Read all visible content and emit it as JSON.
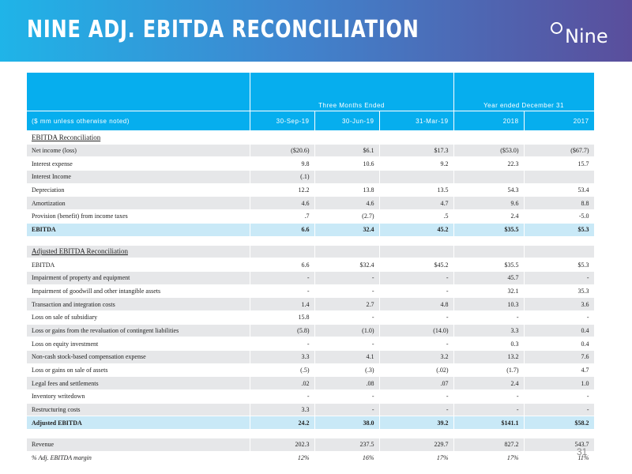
{
  "slide": {
    "title": "NINE ADJ. EBITDA RECONCILIATION",
    "logo_text": "Nine",
    "page_number": "31",
    "colors": {
      "banner_start": "#1fb4e8",
      "banner_end": "#5a4e9c",
      "header_fill": "#06aeee",
      "total_fill": "#c9e9f7",
      "shade_fill": "#e6e7e9"
    }
  },
  "table": {
    "group_three_months": "Three Months Ended",
    "group_year_ended": "Year ended December 31",
    "unit_note": "($ mm unless otherwise noted)",
    "columns": [
      "30-Sep-19",
      "30-Jun-19",
      "31-Mar-19",
      "2018",
      "2017"
    ],
    "section1_title": "EBITDA Reconciliation",
    "section1_rows": [
      {
        "label": "Net income (loss)",
        "values": [
          "($20.6)",
          "$6.1",
          "$17.3",
          "($53.0)",
          "($67.7)"
        ]
      },
      {
        "label": "Interest expense",
        "values": [
          "9.8",
          "10.6",
          "9.2",
          "22.3",
          "15.7"
        ]
      },
      {
        "label": "Interest Income",
        "values": [
          "(.1)",
          "",
          "",
          "",
          ""
        ]
      },
      {
        "label": "Depreciation",
        "values": [
          "12.2",
          "13.8",
          "13.5",
          "54.3",
          "53.4"
        ]
      },
      {
        "label": "Amortization",
        "values": [
          "4.6",
          "4.6",
          "4.7",
          "9.6",
          "8.8"
        ]
      },
      {
        "label": "Provision (benefit) from income taxes",
        "values": [
          ".7",
          "(2.7)",
          ".5",
          "2.4",
          "-5.0"
        ]
      }
    ],
    "ebitda_total": {
      "label": "EBITDA",
      "values": [
        "6.6",
        "32.4",
        "45.2",
        "$35.5",
        "$5.3"
      ]
    },
    "section2_title": "Adjusted EBITDA Reconciliation",
    "section2_rows": [
      {
        "label": "EBITDA",
        "values": [
          "6.6",
          "$32.4",
          "$45.2",
          "$35.5",
          "$5.3"
        ]
      },
      {
        "label": "Impairment of property and equipment",
        "values": [
          "-",
          "-",
          "-",
          "45.7",
          "-"
        ]
      },
      {
        "label": "Impairment of goodwill and other intangible assets",
        "values": [
          "-",
          "-",
          "-",
          "32.1",
          "35.3"
        ]
      },
      {
        "label": "Transaction and integration costs",
        "values": [
          "1.4",
          "2.7",
          "4.8",
          "10.3",
          "3.6"
        ]
      },
      {
        "label": "Loss on sale of subsidiary",
        "values": [
          "15.8",
          "-",
          "-",
          "-",
          "-"
        ]
      },
      {
        "label": "Loss or gains from the revaluation of contingent liabilities",
        "values": [
          "(5.8)",
          "(1.0)",
          "(14.0)",
          "3.3",
          "0.4"
        ]
      },
      {
        "label": "Loss on equity investment",
        "values": [
          "-",
          "-",
          "-",
          "0.3",
          "0.4"
        ]
      },
      {
        "label": "Non-cash stock-based compensation expense",
        "values": [
          "3.3",
          "4.1",
          "3.2",
          "13.2",
          "7.6"
        ]
      },
      {
        "label": "Loss or gains on sale of assets",
        "values": [
          "(.5)",
          "(.3)",
          "(.02)",
          "(1.7)",
          "4.7"
        ]
      },
      {
        "label": "Legal fees and settlements",
        "values": [
          ".02",
          ".08",
          ".07",
          "2.4",
          "1.0"
        ]
      },
      {
        "label": "Inventory writedown",
        "values": [
          "-",
          "-",
          "-",
          "-",
          "-"
        ]
      },
      {
        "label": "Restructuring costs",
        "values": [
          "3.3",
          "-",
          "-",
          "-",
          "-"
        ]
      }
    ],
    "adjusted_total": {
      "label": "Adjusted EBITDA",
      "values": [
        "24.2",
        "38.0",
        "39.2",
        "$141.1",
        "$58.2"
      ]
    },
    "revenue": {
      "label": "Revenue",
      "values": [
        "202.3",
        "237.5",
        "229.7",
        "827.2",
        "543.7"
      ]
    },
    "margin": {
      "label": "% Adj. EBITDA margin",
      "values": [
        "12%",
        "16%",
        "17%",
        "17%",
        "11%"
      ]
    }
  }
}
